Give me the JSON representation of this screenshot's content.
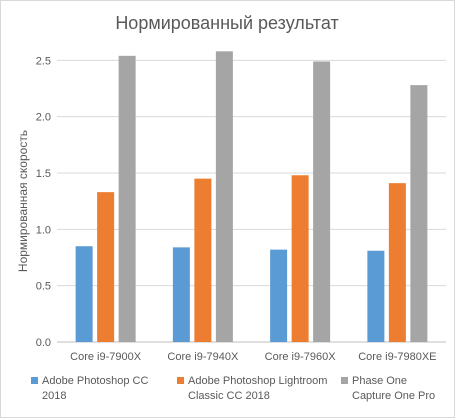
{
  "chart_data": {
    "type": "bar",
    "title": "Нормированный результат",
    "ylabel": "Нормированная скорость",
    "xlabel": "",
    "categories": [
      "Core i9-7900X",
      "Core i9-7940X",
      "Core i9-7960X",
      "Core i9-7980XE"
    ],
    "ylim": [
      0,
      3.0
    ],
    "yticks": [
      "0.0",
      "0.5",
      "1.0",
      "1.5",
      "2.0",
      "2.5"
    ],
    "ytick_values": [
      0,
      0.5,
      1.0,
      1.5,
      2.0,
      2.5
    ],
    "grid": true,
    "legend_position": "bottom",
    "series": [
      {
        "name": "Adobe Photoshop CC 2018",
        "color": "#5b9bd5",
        "values": [
          0.85,
          0.84,
          0.82,
          0.81
        ]
      },
      {
        "name": "Adobe Photoshop Lightroom Classic CC 2018",
        "color": "#ed7d31",
        "values": [
          1.33,
          1.45,
          1.48,
          1.41
        ]
      },
      {
        "name": "Phase One Capture One Pro",
        "color": "#a5a5a5",
        "values": [
          2.54,
          2.58,
          2.49,
          2.28
        ]
      }
    ]
  }
}
